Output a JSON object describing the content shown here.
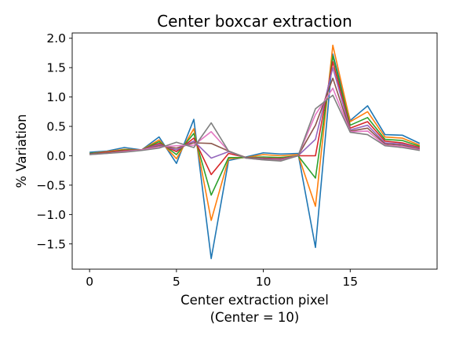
{
  "chart_data": {
    "type": "line",
    "title": "Center boxcar extraction",
    "xlabel": "Center extraction pixel",
    "xlabel_sub": "(Center = 10)",
    "ylabel": "% Variation",
    "xlim": [
      -1,
      20
    ],
    "ylim": [
      -1.93,
      2.09
    ],
    "xticks": [
      0,
      5,
      10,
      15
    ],
    "yticks": [
      2.0,
      1.5,
      1.0,
      0.5,
      0.0,
      -0.5,
      -1.0,
      -1.5
    ],
    "ytick_labels": [
      "2.0",
      "1.5",
      "1.0",
      "0.5",
      "0.0",
      "−0.5",
      "−1.0",
      "−1.5"
    ],
    "grid": false,
    "x": [
      0,
      1,
      2,
      3,
      4,
      5,
      6,
      7,
      8,
      9,
      10,
      11,
      12,
      13,
      14,
      15,
      16,
      17,
      18,
      19
    ],
    "series": [
      {
        "color": "#1f77b4",
        "values": [
          0.06,
          0.08,
          0.14,
          0.1,
          0.32,
          -0.13,
          0.62,
          -1.75,
          -0.08,
          -0.02,
          0.05,
          0.03,
          0.04,
          -1.56,
          1.73,
          0.6,
          0.85,
          0.36,
          0.35,
          0.21
        ]
      },
      {
        "color": "#ff7f0e",
        "values": [
          0.04,
          0.07,
          0.11,
          0.1,
          0.27,
          -0.05,
          0.46,
          -1.1,
          -0.05,
          -0.03,
          0.02,
          0.0,
          0.02,
          -0.86,
          1.88,
          0.58,
          0.75,
          0.32,
          0.3,
          0.18
        ]
      },
      {
        "color": "#2ca02c",
        "values": [
          0.04,
          0.06,
          0.1,
          0.1,
          0.24,
          0.02,
          0.38,
          -0.67,
          -0.03,
          -0.03,
          -0.02,
          -0.03,
          0.0,
          -0.38,
          1.7,
          0.52,
          0.65,
          0.28,
          0.26,
          0.16
        ]
      },
      {
        "color": "#d62728",
        "values": [
          0.03,
          0.06,
          0.09,
          0.1,
          0.21,
          0.07,
          0.3,
          -0.32,
          0.04,
          -0.03,
          -0.04,
          -0.05,
          0.0,
          0.0,
          1.6,
          0.47,
          0.58,
          0.25,
          0.22,
          0.14
        ]
      },
      {
        "color": "#9467bd",
        "values": [
          0.03,
          0.05,
          0.08,
          0.1,
          0.19,
          0.1,
          0.25,
          -0.04,
          0.07,
          -0.03,
          -0.05,
          -0.06,
          0.0,
          0.28,
          1.5,
          0.44,
          0.52,
          0.22,
          0.2,
          0.12
        ]
      },
      {
        "color": "#8c564b",
        "values": [
          0.03,
          0.05,
          0.08,
          0.1,
          0.17,
          0.13,
          0.22,
          0.21,
          0.08,
          -0.03,
          -0.06,
          -0.07,
          0.0,
          0.52,
          1.32,
          0.42,
          0.47,
          0.2,
          0.18,
          0.11
        ]
      },
      {
        "color": "#e377c2",
        "values": [
          0.02,
          0.04,
          0.07,
          0.1,
          0.15,
          0.17,
          0.18,
          0.41,
          0.08,
          -0.04,
          -0.07,
          -0.08,
          0.0,
          0.7,
          1.15,
          0.41,
          0.42,
          0.18,
          0.16,
          0.1
        ]
      },
      {
        "color": "#7f7f7f",
        "values": [
          0.02,
          0.04,
          0.06,
          0.09,
          0.13,
          0.23,
          0.14,
          0.56,
          0.08,
          -0.04,
          -0.07,
          -0.09,
          0.0,
          0.8,
          1.03,
          0.4,
          0.36,
          0.17,
          0.14,
          0.09
        ]
      }
    ]
  }
}
